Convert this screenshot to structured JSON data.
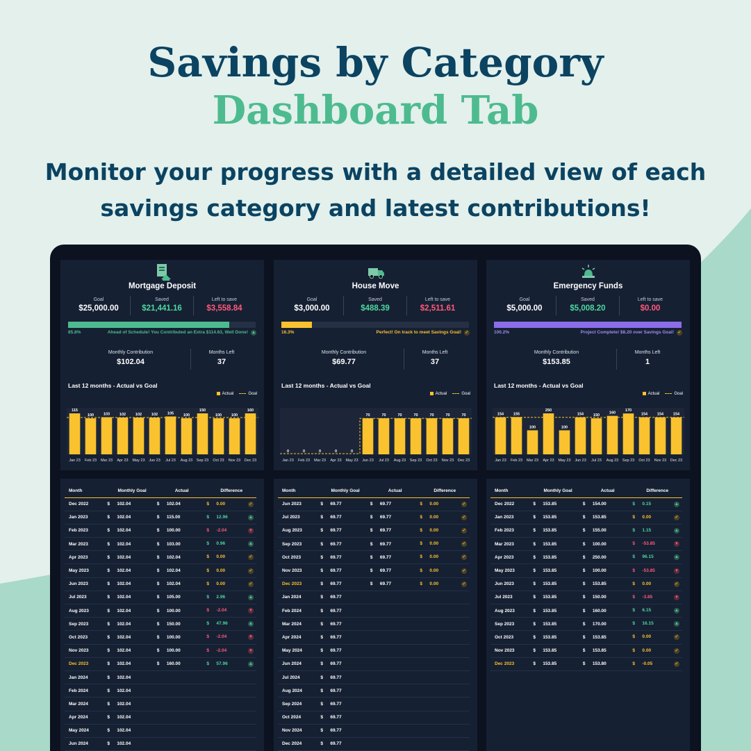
{
  "hero": {
    "title_line1": "Savings by Category",
    "title_line2": "Dashboard Tab",
    "subtitle": "Monitor your progress with a detailed view of each savings category and latest contributions!"
  },
  "colors": {
    "accent_yellow": "#f9c22e",
    "green": "#4dbb8f",
    "positive": "#4dd8a0",
    "negative": "#ff5a7a",
    "purple": "#8a6de9",
    "panel_bg": "#162033"
  },
  "labels": {
    "goal": "Goal",
    "saved": "Saved",
    "left_to_save": "Left to save",
    "monthly_contribution": "Monthly Contribution",
    "months_left": "Months Left",
    "chart_title": "Last 12 months - Actual vs Goal",
    "legend_actual": "Actual",
    "legend_goal": "Goal",
    "col_month": "Month",
    "col_goal": "Monthly Goal",
    "col_actual": "Actual",
    "col_diff": "Difference",
    "currency": "$"
  },
  "categories": [
    {
      "icon": "house-icon",
      "name": "Mortgage Deposit",
      "goal": "$25,000.00",
      "saved": "$21,441.16",
      "left": "$3,558.84",
      "progress": 0.858,
      "progress_label": "85.8%",
      "progress_color": "#4dbb8f",
      "pct_color": "#4dbb8f",
      "message": "Ahead of Schedule! You Contributed an Extra $114.63, Well Done!",
      "message_color": "#4dbb8f",
      "message_icon": "up",
      "monthly_contribution": "$102.04",
      "months_left": "37",
      "chart_data": {
        "type": "bar",
        "categories": [
          "Jan 23",
          "Feb 23",
          "Mar 23",
          "Apr 23",
          "May 23",
          "Jun 23",
          "Jul 23",
          "Aug 23",
          "Sep 23",
          "Oct 23",
          "Nov 23",
          "Dec 23"
        ],
        "series": [
          {
            "name": "Actual",
            "values": [
              115,
              100,
              103,
              102,
              102,
              102,
              105,
              100,
              150,
              100,
              100,
              160
            ]
          }
        ],
        "goal_line": 102.04,
        "ylim": [
          0,
          200
        ],
        "show_zero_line": false
      },
      "rows": [
        {
          "month": "Dec 2022",
          "goal": "102.04",
          "actual": "102.04",
          "diff": "0.00",
          "dir": "zero"
        },
        {
          "month": "Jan 2023",
          "goal": "102.04",
          "actual": "115.00",
          "diff": "12.96",
          "dir": "pos"
        },
        {
          "month": "Feb 2023",
          "goal": "102.04",
          "actual": "100.00",
          "diff": "-2.04",
          "dir": "neg"
        },
        {
          "month": "Mar 2023",
          "goal": "102.04",
          "actual": "103.00",
          "diff": "0.96",
          "dir": "pos"
        },
        {
          "month": "Apr 2023",
          "goal": "102.04",
          "actual": "102.04",
          "diff": "0.00",
          "dir": "zero"
        },
        {
          "month": "May 2023",
          "goal": "102.04",
          "actual": "102.04",
          "diff": "0.00",
          "dir": "zero"
        },
        {
          "month": "Jun 2023",
          "goal": "102.04",
          "actual": "102.04",
          "diff": "0.00",
          "dir": "zero"
        },
        {
          "month": "Jul 2023",
          "goal": "102.04",
          "actual": "105.00",
          "diff": "2.96",
          "dir": "pos"
        },
        {
          "month": "Aug 2023",
          "goal": "102.04",
          "actual": "100.00",
          "diff": "-2.04",
          "dir": "neg"
        },
        {
          "month": "Sep 2023",
          "goal": "102.04",
          "actual": "150.00",
          "diff": "47.96",
          "dir": "pos"
        },
        {
          "month": "Oct 2023",
          "goal": "102.04",
          "actual": "100.00",
          "diff": "-2.04",
          "dir": "neg"
        },
        {
          "month": "Nov 2023",
          "goal": "102.04",
          "actual": "100.00",
          "diff": "-2.04",
          "dir": "neg"
        },
        {
          "month": "Dec 2023",
          "goal": "102.04",
          "actual": "160.00",
          "diff": "57.96",
          "dir": "pos",
          "current": true
        },
        {
          "month": "Jan 2024",
          "goal": "102.04"
        },
        {
          "month": "Feb 2024",
          "goal": "102.04"
        },
        {
          "month": "Mar 2024",
          "goal": "102.04"
        },
        {
          "month": "Apr 2024",
          "goal": "102.04"
        },
        {
          "month": "May 2024",
          "goal": "102.04"
        },
        {
          "month": "Jun 2024",
          "goal": "102.04"
        }
      ]
    },
    {
      "icon": "moving-truck-icon",
      "name": "House Move",
      "goal": "$3,000.00",
      "saved": "$488.39",
      "left": "$2,511.61",
      "progress": 0.163,
      "progress_label": "16.3%",
      "progress_color": "#f9c22e",
      "pct_color": "#f9c22e",
      "message": "Perfect! On track to meet Savings Goal!",
      "message_color": "#f9c22e",
      "message_icon": "check",
      "monthly_contribution": "$69.77",
      "months_left": "37",
      "chart_data": {
        "type": "bar",
        "categories": [
          "Jan 23",
          "Feb 23",
          "Mar 23",
          "Apr 23",
          "May 23",
          "Jun 23",
          "Jul 23",
          "Aug 23",
          "Sep 23",
          "Oct 23",
          "Nov 23",
          "Dec 23"
        ],
        "series": [
          {
            "name": "Actual",
            "values": [
              0,
              0,
              0,
              0,
              0,
              70,
              70,
              70,
              70,
              70,
              70,
              70
            ]
          }
        ],
        "goal_line": 69.77,
        "goal_start_index": 5,
        "ylim": [
          0,
          140
        ],
        "show_zero_line": true
      },
      "rows": [
        {
          "month": "Jun 2023",
          "goal": "69.77",
          "actual": "69.77",
          "diff": "0.00",
          "dir": "zero"
        },
        {
          "month": "Jul 2023",
          "goal": "69.77",
          "actual": "69.77",
          "diff": "0.00",
          "dir": "zero"
        },
        {
          "month": "Aug 2023",
          "goal": "69.77",
          "actual": "69.77",
          "diff": "0.00",
          "dir": "zero"
        },
        {
          "month": "Sep 2023",
          "goal": "69.77",
          "actual": "69.77",
          "diff": "0.00",
          "dir": "zero"
        },
        {
          "month": "Oct 2023",
          "goal": "69.77",
          "actual": "69.77",
          "diff": "0.00",
          "dir": "zero"
        },
        {
          "month": "Nov 2023",
          "goal": "69.77",
          "actual": "69.77",
          "diff": "0.00",
          "dir": "zero"
        },
        {
          "month": "Dec 2023",
          "goal": "69.77",
          "actual": "69.77",
          "diff": "0.00",
          "dir": "zero",
          "current": true
        },
        {
          "month": "Jan 2024",
          "goal": "69.77"
        },
        {
          "month": "Feb 2024",
          "goal": "69.77"
        },
        {
          "month": "Mar 2024",
          "goal": "69.77"
        },
        {
          "month": "Apr 2024",
          "goal": "69.77"
        },
        {
          "month": "May 2024",
          "goal": "69.77"
        },
        {
          "month": "Jun 2024",
          "goal": "69.77"
        },
        {
          "month": "Jul 2024",
          "goal": "69.77"
        },
        {
          "month": "Aug 2024",
          "goal": "69.77"
        },
        {
          "month": "Sep 2024",
          "goal": "69.77"
        },
        {
          "month": "Oct 2024",
          "goal": "69.77"
        },
        {
          "month": "Nov 2024",
          "goal": "69.77"
        },
        {
          "month": "Dec 2024",
          "goal": "69.77"
        }
      ]
    },
    {
      "icon": "siren-icon",
      "name": "Emergency Funds",
      "goal": "$5,000.00",
      "saved": "$5,008.20",
      "left": "$0.00",
      "progress": 1.0,
      "progress_label": "100.2%",
      "progress_color": "#8a6de9",
      "pct_color": "#9f8cf0",
      "message": "Project Complete! $8.20 over Savings Goal!",
      "message_color": "#9f8cf0",
      "message_icon": "check",
      "monthly_contribution": "$153.85",
      "months_left": "1",
      "chart_data": {
        "type": "bar",
        "categories": [
          "Jan 23",
          "Feb 23",
          "Mar 23",
          "Apr 23",
          "May 23",
          "Jun 23",
          "Jul 23",
          "Aug 23",
          "Sep 23",
          "Oct 23",
          "Nov 23",
          "Dec 23"
        ],
        "series": [
          {
            "name": "Actual",
            "values": [
              154,
              155,
              100,
              250,
              100,
              154,
              150,
              160,
              170,
              154,
              154,
              154
            ]
          }
        ],
        "goal_line": 153.85,
        "ylim": [
          0,
          300
        ],
        "show_zero_line": false
      },
      "rows": [
        {
          "month": "Dec 2022",
          "goal": "153.85",
          "actual": "154.00",
          "diff": "0.15",
          "dir": "pos"
        },
        {
          "month": "Jan 2023",
          "goal": "153.85",
          "actual": "153.85",
          "diff": "0.00",
          "dir": "zero"
        },
        {
          "month": "Feb 2023",
          "goal": "153.85",
          "actual": "155.00",
          "diff": "1.15",
          "dir": "pos"
        },
        {
          "month": "Mar 2023",
          "goal": "153.85",
          "actual": "100.00",
          "diff": "-53.85",
          "dir": "neg"
        },
        {
          "month": "Apr 2023",
          "goal": "153.85",
          "actual": "250.00",
          "diff": "96.15",
          "dir": "pos"
        },
        {
          "month": "May 2023",
          "goal": "153.85",
          "actual": "100.00",
          "diff": "-53.85",
          "dir": "neg"
        },
        {
          "month": "Jun 2023",
          "goal": "153.85",
          "actual": "153.85",
          "diff": "0.00",
          "dir": "zero"
        },
        {
          "month": "Jul 2023",
          "goal": "153.85",
          "actual": "150.00",
          "diff": "-3.85",
          "dir": "neg"
        },
        {
          "month": "Aug 2023",
          "goal": "153.85",
          "actual": "160.00",
          "diff": "6.15",
          "dir": "pos"
        },
        {
          "month": "Sep 2023",
          "goal": "153.85",
          "actual": "170.00",
          "diff": "16.15",
          "dir": "pos"
        },
        {
          "month": "Oct 2023",
          "goal": "153.85",
          "actual": "153.85",
          "diff": "0.00",
          "dir": "zero"
        },
        {
          "month": "Nov 2023",
          "goal": "153.85",
          "actual": "153.85",
          "diff": "0.00",
          "dir": "zero"
        },
        {
          "month": "Dec 2023",
          "goal": "153.85",
          "actual": "153.80",
          "diff": "-0.05",
          "dir": "zero",
          "current": true
        }
      ]
    }
  ]
}
